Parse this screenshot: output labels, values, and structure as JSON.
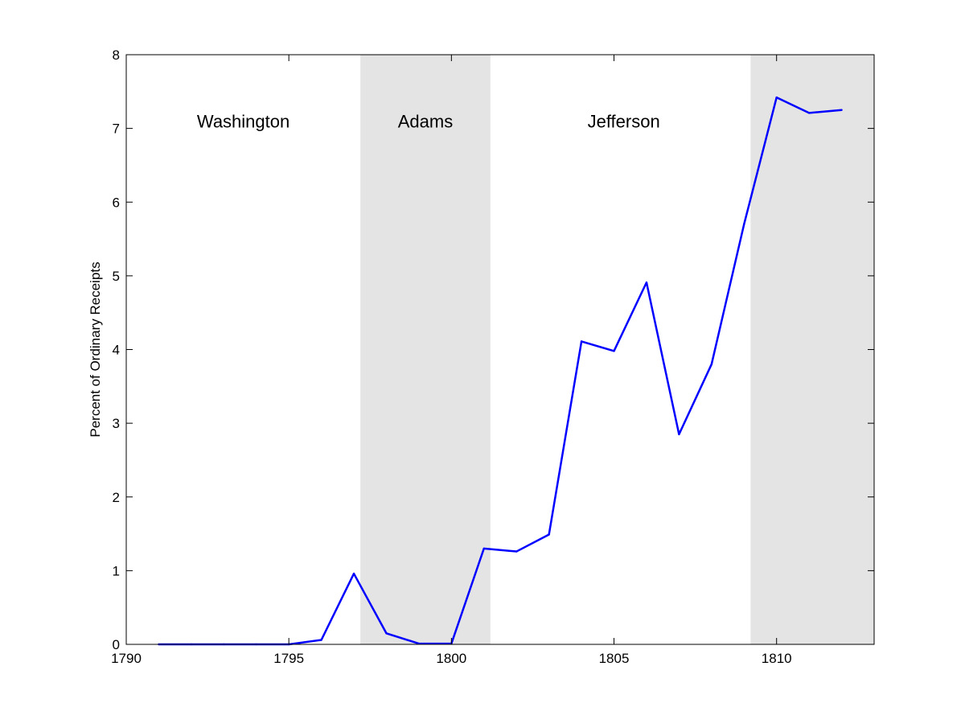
{
  "chart_data": {
    "type": "line",
    "title": "",
    "xlabel": "",
    "ylabel": "Percent of Ordinary Receipts",
    "xlim": [
      1790,
      1813
    ],
    "ylim": [
      0,
      8
    ],
    "x_ticks": [
      1790,
      1795,
      1800,
      1805,
      1810
    ],
    "y_ticks": [
      0,
      1,
      2,
      3,
      4,
      5,
      6,
      7,
      8
    ],
    "grid": false,
    "legend": "none",
    "series": [
      {
        "color": "#0000ff",
        "x": [
          1791,
          1792,
          1793,
          1794,
          1795,
          1796,
          1797,
          1798,
          1799,
          1800,
          1801,
          1802,
          1803,
          1804,
          1805,
          1806,
          1807,
          1808,
          1809,
          1810,
          1811,
          1812
        ],
        "values": [
          0,
          0,
          0,
          0,
          0,
          0.06,
          0.96,
          0.15,
          0.01,
          0.01,
          1.3,
          1.26,
          1.49,
          4.11,
          3.98,
          4.91,
          2.85,
          3.8,
          5.7,
          7.42,
          7.21,
          7.25
        ]
      }
    ],
    "shaded_regions": [
      {
        "from": 1797.2,
        "to": 1801.2,
        "color": "#e4e4e4"
      },
      {
        "from": 1809.2,
        "to": 1813,
        "color": "#e4e4e4"
      }
    ],
    "annotations": [
      {
        "text": "Washington",
        "x": 1793.6,
        "y": 7.1
      },
      {
        "text": "Adams",
        "x": 1799.2,
        "y": 7.1
      },
      {
        "text": "Jefferson",
        "x": 1805.3,
        "y": 7.1
      }
    ]
  }
}
